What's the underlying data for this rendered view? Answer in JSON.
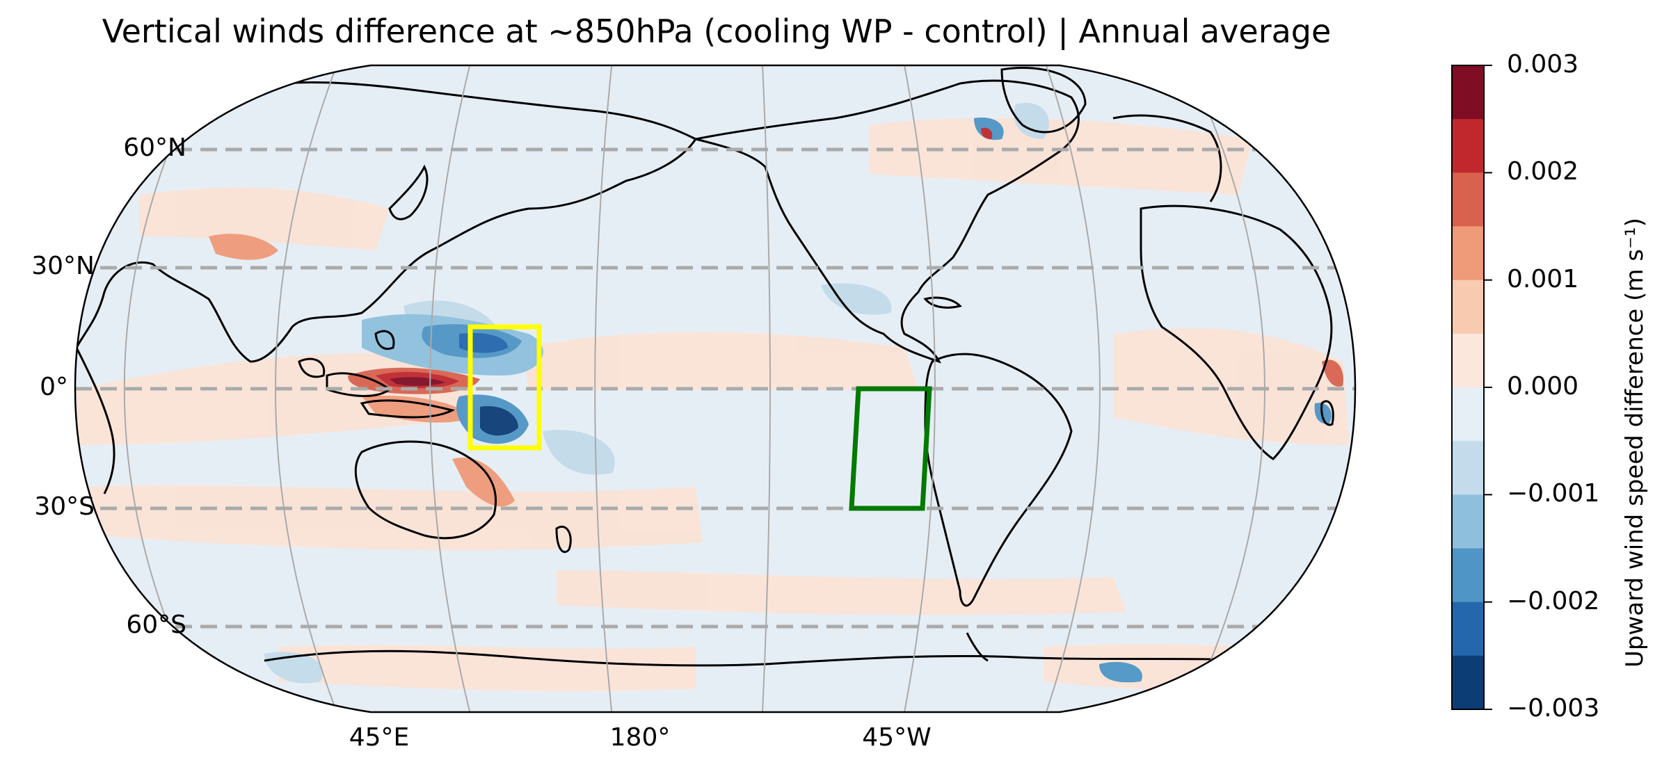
{
  "title": "Vertical winds difference at ~850hPa (cooling WP - control) | Annual average",
  "map": {
    "projection": "Robinson",
    "central_longitude": "180°",
    "background_color": "#e6eef5",
    "ocean_tint_positive": "#fbe3d6",
    "graticule_color": "#aaaaaa",
    "highlight_latitudes_dashed": [
      "60°N",
      "30°N",
      "0°",
      "30°S",
      "60°S"
    ],
    "coastline_color": "#000000"
  },
  "lat_labels": [
    "60°N",
    "30°N",
    "0°",
    "30°S",
    "60°S"
  ],
  "lon_labels": [
    "45°E",
    "180°",
    "45°W"
  ],
  "boxes": [
    {
      "name": "west-pacific-box",
      "color": "#ffff00",
      "lon_range": [
        140,
        170
      ],
      "lat_range": [
        -15,
        15
      ]
    },
    {
      "name": "southeast-pacific-box",
      "color": "#007a00",
      "lon_range": [
        -100,
        -70
      ],
      "lat_range": [
        -30,
        0
      ]
    }
  ],
  "colorbar": {
    "label": "Upward wind speed difference (m s⁻¹)",
    "ticks": [
      "0.003",
      "0.002",
      "0.001",
      "0.000",
      "−0.001",
      "−0.002",
      "−0.003"
    ],
    "min": -0.003,
    "max": 0.003,
    "levels": 12,
    "colors_top_to_bottom": [
      "#7f0d24",
      "#c0282e",
      "#d9624f",
      "#ef9a79",
      "#f8cbb0",
      "#fbe7dc",
      "#e6eff5",
      "#c3dbea",
      "#8ec0dd",
      "#4f95c5",
      "#2467ad",
      "#0d3d75"
    ]
  }
}
